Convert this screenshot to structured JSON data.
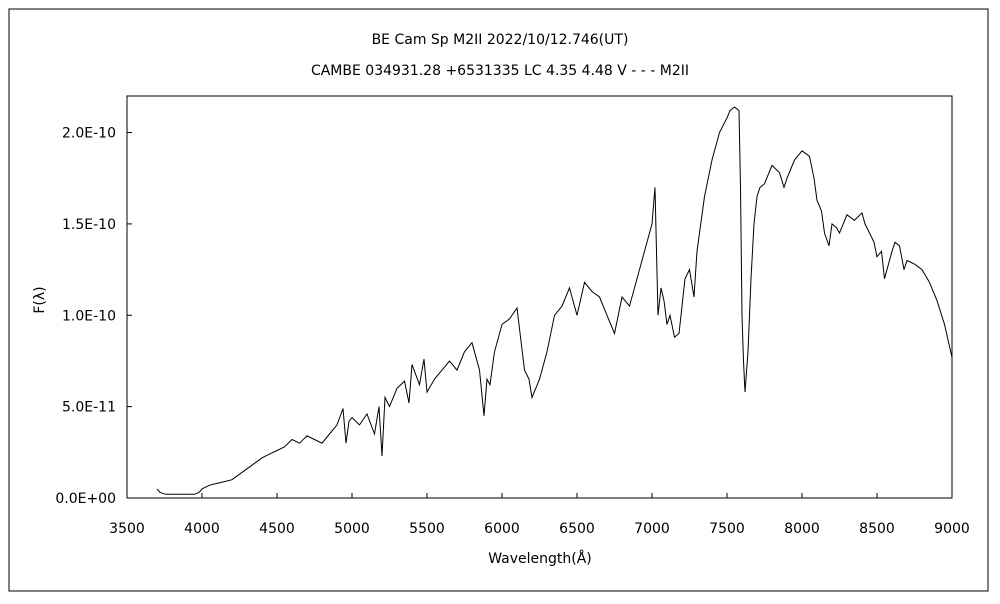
{
  "chart_data": {
    "type": "line",
    "title": "BE Cam    Sp M2II    2022/10/12.746(UT)",
    "subtitle": "CAMBE 034931.28 +6531335 LC 4.35 4.48 V - - - M2II",
    "xlabel": "Wavelength(Å)",
    "ylabel": "F(λ)",
    "xlim": [
      3500,
      9000
    ],
    "ylim": [
      0,
      2.2e-10
    ],
    "grid": false,
    "legend": "none",
    "x_ticks": [
      3500,
      4000,
      4500,
      5000,
      5500,
      6000,
      6500,
      7000,
      7500,
      8000,
      8500,
      9000
    ],
    "x_tick_labels": [
      "3500",
      "4000",
      "4500",
      "5000",
      "5500",
      "6000",
      "6500",
      "7000",
      "7500",
      "8000",
      "8500",
      "9000"
    ],
    "y_ticks": [
      0,
      5e-11,
      1e-10,
      1.5e-10,
      2e-10
    ],
    "y_tick_labels": [
      "0.0E+00",
      "5.0E-11",
      "1.0E-10",
      "1.5E-10",
      "2.0E-10"
    ],
    "series": [
      {
        "color": "#000000",
        "x": [
          3700,
          3720,
          3760,
          3800,
          3850,
          3900,
          3950,
          3980,
          4000,
          4050,
          4100,
          4150,
          4200,
          4250,
          4300,
          4350,
          4400,
          4450,
          4500,
          4550,
          4600,
          4650,
          4700,
          4750,
          4800,
          4850,
          4900,
          4940,
          4960,
          4980,
          5000,
          5050,
          5100,
          5150,
          5180,
          5200,
          5220,
          5250,
          5300,
          5350,
          5380,
          5400,
          5450,
          5480,
          5500,
          5550,
          5600,
          5650,
          5700,
          5750,
          5800,
          5850,
          5880,
          5900,
          5920,
          5950,
          6000,
          6050,
          6100,
          6150,
          6180,
          6200,
          6250,
          6300,
          6350,
          6400,
          6450,
          6500,
          6550,
          6600,
          6650,
          6700,
          6750,
          6800,
          6850,
          6900,
          6950,
          7000,
          7020,
          7040,
          7060,
          7080,
          7100,
          7120,
          7150,
          7180,
          7200,
          7220,
          7250,
          7280,
          7300,
          7350,
          7400,
          7450,
          7500,
          7520,
          7550,
          7580,
          7590,
          7600,
          7610,
          7620,
          7640,
          7660,
          7680,
          7700,
          7720,
          7750,
          7800,
          7850,
          7880,
          7900,
          7950,
          8000,
          8050,
          8080,
          8100,
          8130,
          8150,
          8180,
          8200,
          8230,
          8250,
          8300,
          8350,
          8400,
          8420,
          8450,
          8480,
          8500,
          8530,
          8550,
          8600,
          8620,
          8650,
          8680,
          8700,
          8750,
          8800,
          8850,
          8900,
          8950,
          9000
        ],
        "values": [
          5e-12,
          3e-12,
          2e-12,
          2e-12,
          2e-12,
          2e-12,
          2e-12,
          3e-12,
          5e-12,
          7e-12,
          8e-12,
          9e-12,
          1e-11,
          1.3e-11,
          1.6e-11,
          1.9e-11,
          2.2e-11,
          2.4e-11,
          2.6e-11,
          2.8e-11,
          3.2e-11,
          3e-11,
          3.4e-11,
          3.2e-11,
          3e-11,
          3.5e-11,
          4e-11,
          4.9e-11,
          3e-11,
          4.2e-11,
          4.4e-11,
          4e-11,
          4.6e-11,
          3.5e-11,
          5e-11,
          2.3e-11,
          5.5e-11,
          5e-11,
          6e-11,
          6.4e-11,
          5.2e-11,
          7.3e-11,
          6.2e-11,
          7.6e-11,
          5.8e-11,
          6.5e-11,
          7e-11,
          7.5e-11,
          7e-11,
          8e-11,
          8.5e-11,
          7e-11,
          4.5e-11,
          6.5e-11,
          6.2e-11,
          8e-11,
          9.5e-11,
          9.8e-11,
          1.04e-10,
          7e-11,
          6.5e-11,
          5.5e-11,
          6.5e-11,
          8e-11,
          1e-10,
          1.05e-10,
          1.15e-10,
          1e-10,
          1.18e-10,
          1.13e-10,
          1.1e-10,
          1e-10,
          9e-11,
          1.1e-10,
          1.05e-10,
          1.2e-10,
          1.35e-10,
          1.5e-10,
          1.7e-10,
          1e-10,
          1.15e-10,
          1.08e-10,
          9.5e-11,
          1e-10,
          8.8e-11,
          9e-11,
          1.05e-10,
          1.2e-10,
          1.25e-10,
          1.1e-10,
          1.35e-10,
          1.65e-10,
          1.85e-10,
          2e-10,
          2.08e-10,
          2.12e-10,
          2.14e-10,
          2.12e-10,
          1.7e-10,
          1e-10,
          7.5e-11,
          5.8e-11,
          8e-11,
          1.2e-10,
          1.5e-10,
          1.65e-10,
          1.7e-10,
          1.72e-10,
          1.82e-10,
          1.78e-10,
          1.7e-10,
          1.75e-10,
          1.85e-10,
          1.9e-10,
          1.87e-10,
          1.75e-10,
          1.63e-10,
          1.57e-10,
          1.45e-10,
          1.38e-10,
          1.5e-10,
          1.48e-10,
          1.45e-10,
          1.55e-10,
          1.52e-10,
          1.56e-10,
          1.5e-10,
          1.45e-10,
          1.4e-10,
          1.32e-10,
          1.35e-10,
          1.2e-10,
          1.35e-10,
          1.4e-10,
          1.38e-10,
          1.25e-10,
          1.3e-10,
          1.28e-10,
          1.25e-10,
          1.18e-10,
          1.08e-10,
          9.5e-11,
          7.7e-11
        ]
      }
    ]
  }
}
